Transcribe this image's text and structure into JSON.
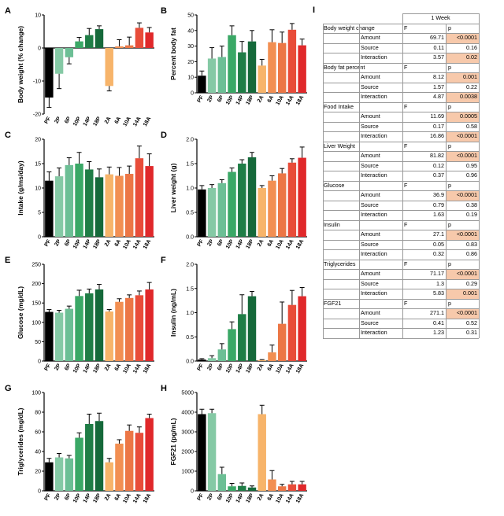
{
  "chart_data": [
    {
      "type": "bar",
      "panel": "A",
      "title": "",
      "xlabel": "",
      "ylabel": "Body weight (% change)",
      "categories": [
        "PF",
        "2P",
        "6P",
        "10P",
        "14P",
        "18P",
        "2A",
        "6A",
        "10A",
        "14A",
        "18A"
      ],
      "values": [
        -15,
        -7.8,
        -2.8,
        2,
        3.9,
        5.7,
        -11.5,
        0.5,
        0.8,
        6.1,
        4.7
      ],
      "errors": [
        3,
        4.5,
        2,
        1.2,
        2,
        1,
        1.5,
        2,
        2.5,
        1.5,
        1.5
      ],
      "ylim": [
        -20,
        10
      ],
      "yticks": [
        "-20",
        "-10",
        "0",
        "10"
      ],
      "yticks_num": [
        -20,
        -10,
        0,
        10
      ]
    },
    {
      "type": "bar",
      "panel": "B",
      "title": "",
      "xlabel": "",
      "ylabel": "Percent body fat",
      "categories": [
        "PF",
        "2P",
        "6P",
        "10P",
        "14P",
        "18P",
        "2A",
        "6A",
        "10A",
        "14A",
        "18A"
      ],
      "values": [
        11,
        22,
        23,
        37,
        26,
        33,
        17.5,
        32.5,
        32,
        40.5,
        30.5
      ],
      "errors": [
        3,
        7,
        7,
        6,
        7,
        7,
        4,
        8,
        7,
        4,
        4
      ],
      "ylim": [
        0,
        50
      ],
      "yticks": [
        "0",
        "10",
        "20",
        "30",
        "40",
        "50"
      ],
      "yticks_num": [
        0,
        10,
        20,
        30,
        40,
        50
      ]
    },
    {
      "type": "bar",
      "panel": "C",
      "title": "",
      "xlabel": "",
      "ylabel": "Intake (g/ms/day)",
      "categories": [
        "PF",
        "2P",
        "6P",
        "10P",
        "14P",
        "18P",
        "2A",
        "6A",
        "10A",
        "14A",
        "18A"
      ],
      "values": [
        11.5,
        12.4,
        14.7,
        15,
        13.8,
        12.2,
        12.8,
        12.5,
        12.9,
        16.1,
        14.5
      ],
      "errors": [
        1.8,
        1.7,
        1.5,
        2.3,
        1.6,
        1.7,
        1.5,
        1.7,
        1.6,
        2.5,
        2.5
      ],
      "ylim": [
        0,
        20
      ],
      "yticks": [
        "0",
        "5",
        "10",
        "15",
        "20"
      ],
      "yticks_num": [
        0,
        5,
        10,
        15,
        20
      ]
    },
    {
      "type": "bar",
      "panel": "D",
      "title": "",
      "xlabel": "",
      "ylabel": "Liver weight (g)",
      "categories": [
        "PF",
        "2P",
        "6P",
        "10P",
        "14P",
        "18P",
        "2A",
        "6A",
        "10A",
        "14A",
        "18A"
      ],
      "values": [
        0.97,
        1.0,
        1.1,
        1.33,
        1.5,
        1.63,
        1.0,
        1.15,
        1.3,
        1.52,
        1.62
      ],
      "errors": [
        0.08,
        0.07,
        0.07,
        0.08,
        0.08,
        0.1,
        0.05,
        0.1,
        0.1,
        0.08,
        0.22
      ],
      "ylim": [
        0,
        2.0
      ],
      "yticks": [
        "0.0",
        "0.5",
        "1.0",
        "1.5",
        "2.0"
      ],
      "yticks_num": [
        0,
        0.5,
        1,
        1.5,
        2
      ]
    },
    {
      "type": "bar",
      "panel": "E",
      "title": "",
      "xlabel": "",
      "ylabel": "Glucose (mg/dL)",
      "categories": [
        "PF",
        "2P",
        "6P",
        "10P",
        "14P",
        "18P",
        "2A",
        "6A",
        "10A",
        "14A",
        "18A"
      ],
      "values": [
        127,
        125,
        135,
        168,
        175,
        185,
        128,
        153,
        163,
        170,
        185
      ],
      "errors": [
        6,
        6,
        7,
        15,
        11,
        13,
        5,
        8,
        8,
        11,
        18
      ],
      "ylim": [
        0,
        250
      ],
      "yticks": [
        "0",
        "50",
        "100",
        "150",
        "200",
        "250"
      ],
      "yticks_num": [
        0,
        50,
        100,
        150,
        200,
        250
      ]
    },
    {
      "type": "bar",
      "panel": "F",
      "title": "",
      "xlabel": "",
      "ylabel": "Insulin (ng/mL)",
      "categories": [
        "PF",
        "2P",
        "6P",
        "10P",
        "14P",
        "18P",
        "2A",
        "6A",
        "10A",
        "14A",
        "18A"
      ],
      "values": [
        0.03,
        0.06,
        0.24,
        0.66,
        0.97,
        1.34,
        0.02,
        0.18,
        0.77,
        1.16,
        1.34
      ],
      "errors": [
        0.02,
        0.05,
        0.12,
        0.15,
        0.4,
        0.1,
        0.01,
        0.15,
        0.45,
        0.3,
        0.18
      ],
      "ylim": [
        0,
        2.0
      ],
      "yticks": [
        "0.0",
        "0.5",
        "1.0",
        "1.5",
        "2.0"
      ],
      "yticks_num": [
        0,
        0.5,
        1,
        1.5,
        2
      ]
    },
    {
      "type": "bar",
      "panel": "G",
      "title": "",
      "xlabel": "",
      "ylabel": "Triglycerides (mg/dL)",
      "categories": [
        "PF",
        "2P",
        "6P",
        "10P",
        "14P",
        "18P",
        "2A",
        "6A",
        "10A",
        "14A",
        "18A"
      ],
      "values": [
        29,
        34,
        33,
        54,
        68,
        71,
        29,
        48,
        61,
        59,
        74
      ],
      "errors": [
        4,
        4,
        3,
        5,
        10,
        8,
        4,
        4,
        6,
        6,
        4
      ],
      "ylim": [
        0,
        100
      ],
      "yticks": [
        "0",
        "20",
        "40",
        "60",
        "80",
        "100"
      ],
      "yticks_num": [
        0,
        20,
        40,
        60,
        80,
        100
      ]
    },
    {
      "type": "bar",
      "panel": "H",
      "title": "",
      "xlabel": "",
      "ylabel": "FGF21 (pg/mL)",
      "categories": [
        "PF",
        "2P",
        "6P",
        "10P",
        "14P",
        "18P",
        "2A",
        "6A",
        "10A",
        "14A",
        "18A"
      ],
      "values": [
        3900,
        3950,
        850,
        230,
        250,
        170,
        3900,
        580,
        230,
        330,
        330
      ],
      "errors": [
        250,
        200,
        350,
        150,
        150,
        80,
        450,
        450,
        100,
        150,
        150
      ],
      "ylim": [
        0,
        5000
      ],
      "yticks": [
        "0",
        "1000",
        "2000",
        "3000",
        "4000",
        "5000"
      ],
      "yticks_num": [
        0,
        1000,
        2000,
        3000,
        4000,
        5000
      ]
    }
  ],
  "colors": [
    "#000000",
    "#85c9a5",
    "#6cbf95",
    "#3aa866",
    "#1f7d46",
    "#15693a",
    "#f7b46a",
    "#f28f52",
    "#ec7645",
    "#e84c39",
    "#e0282a"
  ],
  "stats_table": {
    "label": "I",
    "column_header": "1 Week",
    "f_label": "F",
    "p_label": "p",
    "highlight_color": "#f7c9ab",
    "sections": [
      {
        "name": "Body weight change",
        "rows": [
          {
            "label": "Amount",
            "F": "69.71",
            "p": "<0.0001",
            "sig": true
          },
          {
            "label": "Source",
            "F": "0.11",
            "p": "0.16",
            "sig": false
          },
          {
            "label": "Interaction",
            "F": "3.57",
            "p": "0.02",
            "sig": true
          }
        ]
      },
      {
        "name": "Body fat percent",
        "rows": [
          {
            "label": "Amount",
            "F": "8.12",
            "p": "0.001",
            "sig": true
          },
          {
            "label": "Source",
            "F": "1.57",
            "p": "0.22",
            "sig": false
          },
          {
            "label": "Interaction",
            "F": "4.87",
            "p": "0.0038",
            "sig": true
          }
        ]
      },
      {
        "name": "Food Intake",
        "rows": [
          {
            "label": "Amount",
            "F": "11.69",
            "p": "0.0005",
            "sig": true
          },
          {
            "label": "Source",
            "F": "0.17",
            "p": "0.58",
            "sig": false
          },
          {
            "label": "Interaction",
            "F": "16.86",
            "p": "<0.0001",
            "sig": true
          }
        ]
      },
      {
        "name": "Liver Weight",
        "rows": [
          {
            "label": "Amount",
            "F": "81.82",
            "p": "<0.0001",
            "sig": true
          },
          {
            "label": "Source",
            "F": "0.12",
            "p": "0.95",
            "sig": false
          },
          {
            "label": "Interaction",
            "F": "0.37",
            "p": "0.96",
            "sig": false
          }
        ]
      },
      {
        "name": "Glucose",
        "rows": [
          {
            "label": "Amount",
            "F": "36.9",
            "p": "<0.0001",
            "sig": true
          },
          {
            "label": "Source",
            "F": "0.79",
            "p": "0.38",
            "sig": false
          },
          {
            "label": "Interaction",
            "F": "1.63",
            "p": "0.19",
            "sig": false
          }
        ]
      },
      {
        "name": "Insulin",
        "rows": [
          {
            "label": "Amount",
            "F": "27.1",
            "p": "<0.0001",
            "sig": true
          },
          {
            "label": "Source",
            "F": "0.05",
            "p": "0.83",
            "sig": false
          },
          {
            "label": "Interaction",
            "F": "0.32",
            "p": "0.86",
            "sig": false
          }
        ]
      },
      {
        "name": "Triglycerides",
        "rows": [
          {
            "label": "Amount",
            "F": "71.17",
            "p": "<0.0001",
            "sig": true
          },
          {
            "label": "Source",
            "F": "1.3",
            "p": "0.29",
            "sig": false
          },
          {
            "label": "Interaction",
            "F": "5.83",
            "p": "0.001",
            "sig": true
          }
        ]
      },
      {
        "name": "FGF21",
        "rows": [
          {
            "label": "Amount",
            "F": "271.1",
            "p": "<0.0001",
            "sig": true
          },
          {
            "label": "Source",
            "F": "0.41",
            "p": "0.52",
            "sig": false
          },
          {
            "label": "Interaction",
            "F": "1.23",
            "p": "0.31",
            "sig": false
          }
        ]
      }
    ]
  }
}
